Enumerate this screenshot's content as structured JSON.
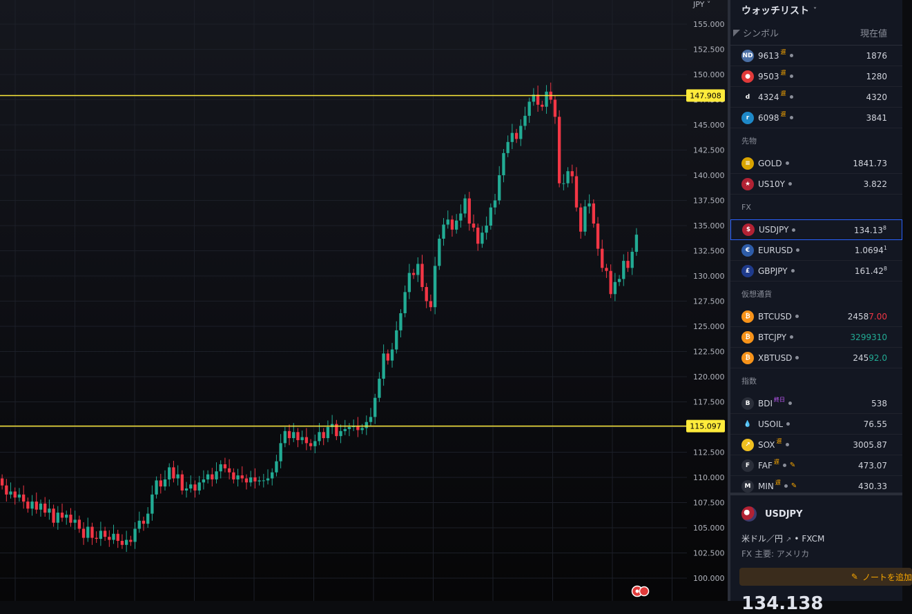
{
  "chart": {
    "currency_label": "JPY",
    "axis_ticks": [
      "155.000",
      "152.500",
      "150.000",
      "147.500",
      "145.000",
      "142.500",
      "140.000",
      "137.500",
      "135.000",
      "132.500",
      "130.000",
      "127.500",
      "125.000",
      "122.500",
      "120.000",
      "117.500",
      "115.000",
      "112.500",
      "110.000",
      "107.500",
      "105.000",
      "102.500",
      "100.000"
    ],
    "hline_labels": [
      "147.908",
      "115.097"
    ],
    "colors": {
      "up": "#22ab94",
      "down": "#f23645",
      "hline": "#ffeb3b"
    }
  },
  "chart_data": {
    "type": "candlestick",
    "ylim": [
      99,
      157
    ],
    "yticks": [
      155,
      152.5,
      150,
      147.5,
      145,
      142.5,
      140,
      137.5,
      135,
      132.5,
      130,
      127.5,
      125,
      122.5,
      120,
      117.5,
      115,
      112.5,
      110,
      107.5,
      105,
      102.5,
      100
    ],
    "horizontal_lines": [
      147.908,
      115.097
    ],
    "close": [
      109.2,
      108.3,
      108.6,
      108.0,
      108.3,
      107.6,
      106.9,
      107.6,
      106.8,
      107.4,
      106.5,
      106.9,
      105.5,
      106.5,
      106.0,
      106.3,
      105.5,
      105.8,
      104.9,
      104.0,
      105.1,
      104.0,
      103.9,
      104.7,
      104.1,
      103.8,
      104.4,
      103.7,
      103.3,
      103.8,
      103.6,
      104.9,
      105.7,
      105.4,
      106.4,
      108.3,
      109.7,
      109.1,
      109.8,
      111.0,
      109.9,
      110.3,
      108.7,
      108.9,
      109.3,
      108.7,
      109.5,
      109.8,
      110.3,
      109.8,
      110.6,
      111.3,
      110.9,
      110.5,
      109.8,
      110.2,
      109.9,
      109.5,
      110.0,
      109.6,
      109.7,
      109.7,
      109.9,
      110.5,
      111.6,
      113.4,
      114.6,
      113.9,
      114.5,
      113.7,
      114.0,
      113.4,
      113.1,
      113.6,
      114.5,
      113.9,
      115.0,
      115.3,
      114.1,
      114.6,
      114.8,
      115.0,
      115.1,
      114.7,
      114.9,
      115.5,
      116.0,
      117.9,
      119.8,
      122.3,
      121.6,
      122.7,
      124.6,
      126.3,
      128.4,
      130.3,
      130.1,
      131.2,
      128.9,
      127.5,
      126.9,
      131.0,
      133.7,
      135.1,
      135.6,
      134.6,
      135.5,
      136.2,
      137.7,
      135.2,
      134.8,
      133.2,
      134.3,
      135.0,
      136.8,
      137.5,
      140.0,
      142.2,
      143.3,
      144.2,
      143.6,
      144.9,
      145.9,
      147.3,
      148.0,
      147.0,
      146.8,
      148.3,
      147.5,
      145.8,
      139.2,
      139.2,
      140.4,
      139.9,
      136.8,
      134.4,
      136.9,
      137.2,
      135.2,
      132.7,
      130.8,
      130.5,
      128.2,
      129.4,
      129.7,
      131.5,
      130.8,
      132.4,
      134.1
    ],
    "open": [
      109.9,
      109.2,
      108.3,
      108.6,
      108.0,
      108.3,
      107.6,
      106.9,
      107.6,
      106.8,
      107.4,
      106.5,
      106.9,
      105.5,
      106.5,
      106.0,
      106.3,
      105.5,
      105.8,
      104.9,
      104.0,
      105.1,
      104.0,
      103.9,
      104.7,
      104.1,
      103.8,
      104.4,
      103.7,
      103.3,
      103.8,
      103.6,
      104.9,
      105.7,
      105.4,
      106.4,
      108.3,
      109.7,
      109.1,
      109.8,
      111.0,
      109.9,
      110.3,
      108.7,
      108.9,
      109.3,
      108.7,
      109.5,
      109.8,
      110.3,
      109.8,
      110.6,
      111.3,
      110.9,
      110.5,
      109.8,
      110.2,
      109.9,
      109.5,
      110.0,
      109.6,
      109.7,
      109.7,
      109.9,
      110.5,
      111.6,
      113.4,
      114.6,
      113.9,
      114.5,
      113.7,
      114.0,
      113.4,
      113.1,
      113.6,
      114.5,
      113.9,
      115.0,
      115.3,
      114.1,
      114.6,
      114.8,
      115.0,
      115.1,
      114.7,
      114.9,
      115.5,
      116.0,
      117.9,
      119.8,
      122.3,
      121.6,
      122.7,
      124.6,
      126.3,
      128.4,
      130.3,
      130.1,
      131.2,
      128.9,
      127.5,
      126.9,
      131.0,
      133.7,
      135.1,
      135.6,
      134.6,
      135.5,
      136.2,
      137.7,
      135.2,
      134.8,
      133.2,
      134.3,
      135.0,
      136.8,
      137.5,
      140.0,
      142.2,
      143.3,
      144.2,
      143.6,
      144.9,
      145.9,
      147.3,
      148.0,
      147.0,
      146.8,
      148.3,
      147.5,
      145.8,
      139.2,
      139.2,
      140.4,
      139.9,
      136.8,
      134.4,
      136.9,
      137.2,
      135.2,
      132.7,
      130.8,
      130.5,
      128.2,
      129.4,
      129.7,
      131.5,
      130.8,
      132.4
    ]
  },
  "watchlist": {
    "title": "ウォッチリスト",
    "col_symbol": "シンボル",
    "col_price": "現在値",
    "groups": [
      {
        "label": "",
        "items": [
          {
            "icon": "ND",
            "icon_color": "#4a6fa5",
            "symbol": "9613",
            "badge": "遅",
            "price": "1876"
          },
          {
            "icon": "●",
            "icon_color": "#e03a3a",
            "symbol": "9503",
            "badge": "遅",
            "price": "1280"
          },
          {
            "icon": "d",
            "icon_color": "#131722",
            "symbol": "4324",
            "badge": "遅",
            "price": "4320"
          },
          {
            "icon": "r",
            "icon_color": "#1e88c7",
            "symbol": "6098",
            "badge": "遅",
            "price": "3841"
          }
        ]
      },
      {
        "label": "先物",
        "items": [
          {
            "icon": "≡",
            "icon_color": "#d9a400",
            "symbol": "GOLD",
            "badge": "",
            "price": "1841.73"
          },
          {
            "icon": "★",
            "icon_color": "#b22234",
            "symbol": "US10Y",
            "badge": "",
            "price": "3.822"
          }
        ]
      },
      {
        "label": "FX",
        "items": [
          {
            "icon": "$",
            "icon_color": "#b22234",
            "symbol": "USDJPY",
            "badge": "",
            "price": "134.13",
            "price_sup": "8",
            "selected": true
          },
          {
            "icon": "€",
            "icon_color": "#2e5ca8",
            "symbol": "EURUSD",
            "badge": "",
            "price": "1.0694",
            "price_sup": "1"
          },
          {
            "icon": "£",
            "icon_color": "#1f3b8c",
            "symbol": "GBPJPY",
            "badge": "",
            "price": "161.42",
            "price_sup": "8"
          }
        ]
      },
      {
        "label": "仮想通貨",
        "items": [
          {
            "icon": "₿",
            "icon_color": "#f7931a",
            "symbol": "BTCUSD",
            "badge": "",
            "price_main": "2458",
            "price_hl": "7.00",
            "hl": "red"
          },
          {
            "icon": "₿",
            "icon_color": "#f7931a",
            "symbol": "BTCJPY",
            "badge": "",
            "price_main": "",
            "price_hl": "3299310",
            "hl": "green"
          },
          {
            "icon": "₿",
            "icon_color": "#f7931a",
            "symbol": "XBTUSD",
            "badge": "",
            "price_main": "245",
            "price_hl": "92.0",
            "hl": "green"
          }
        ]
      },
      {
        "label": "指数",
        "items": [
          {
            "icon": "B",
            "icon_color": "#2a2e39",
            "symbol": "BDI",
            "badge": "終日",
            "badge_color": "purple",
            "price": "538"
          },
          {
            "icon": "💧",
            "icon_color": "#131722",
            "symbol": "USOIL",
            "badge": "",
            "price": "76.55"
          },
          {
            "icon": "↗",
            "icon_color": "#f0c020",
            "symbol": "SOX",
            "badge": "遅",
            "price": "3005.87"
          },
          {
            "icon": "F",
            "icon_color": "#2a2e39",
            "symbol": "FAF",
            "badge": "遅",
            "price": "473.07",
            "edit": true
          },
          {
            "icon": "M",
            "icon_color": "#2a2e39",
            "symbol": "MIN",
            "badge": "遅",
            "price": "430.33",
            "edit": true
          }
        ]
      }
    ]
  },
  "details": {
    "symbol": "USDJPY",
    "name": "米ドル／円",
    "exchange": "FXCM",
    "type_line": "FX 主要: アメリカ",
    "note_button": "ノートを追加",
    "price_partial": "134.138"
  }
}
